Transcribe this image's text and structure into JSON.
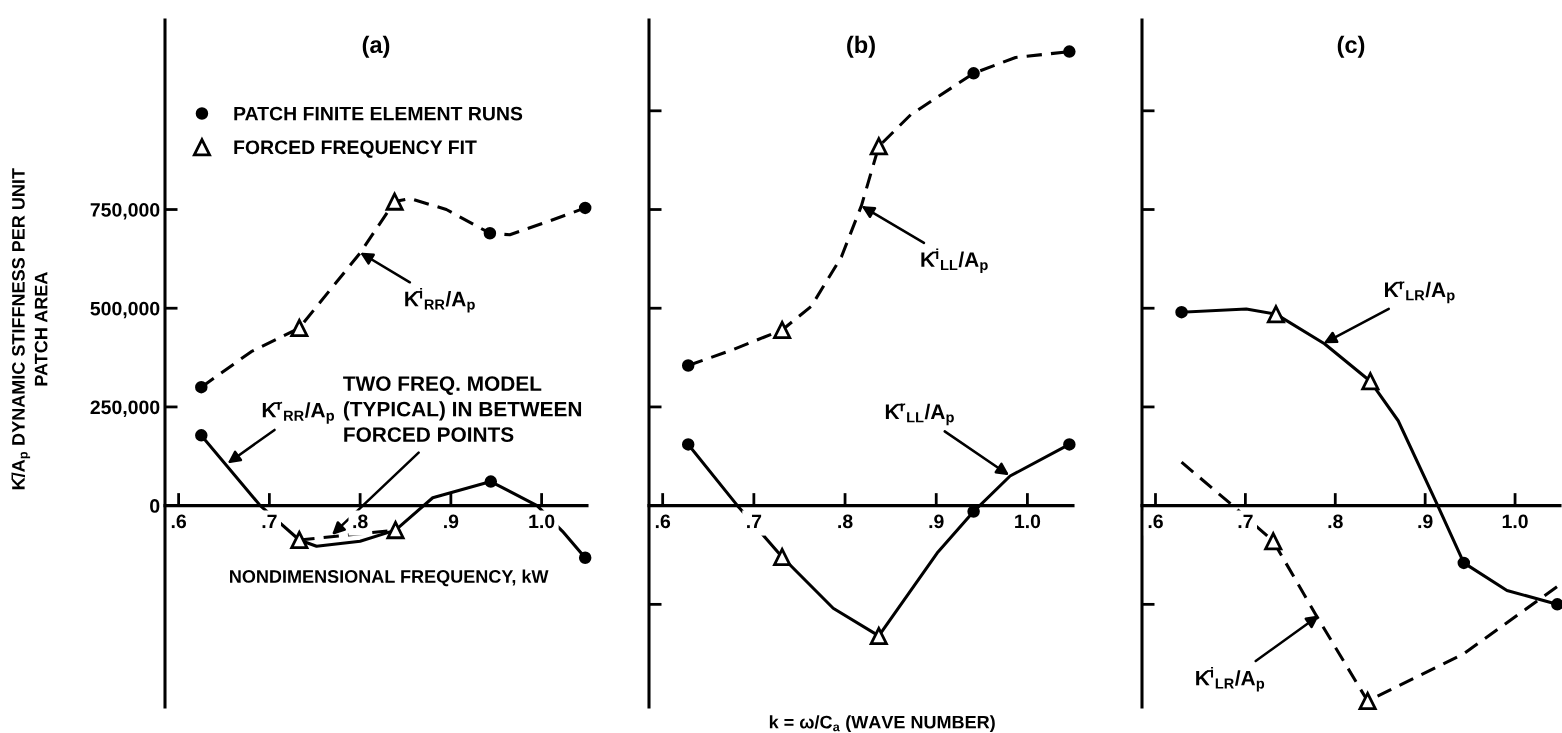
{
  "chart_data": [
    {
      "type": "line",
      "title": "(a)",
      "xlabel": "NONDIMENSIONAL FREQUENCY, kW",
      "ylabel": "K̄/A$_{p}$ DYNAMIC STIFFNESS PER UNIT\nPATCH AREA",
      "xlim": [
        0.585,
        1.05
      ],
      "ylim": [
        -510000,
        1230000
      ],
      "xticks": [
        {
          "value": 0.6,
          "label": ".6"
        },
        {
          "value": 0.7,
          "label": ".7"
        },
        {
          "value": 0.8,
          "label": ".8"
        },
        {
          "value": 0.9,
          "label": ".9"
        },
        {
          "value": 1.0,
          "label": "1.0"
        }
      ],
      "yticks": [
        0,
        {
          "value": 250000,
          "label": "250,000"
        },
        {
          "value": 500000,
          "label": "500,000"
        },
        {
          "value": 750000,
          "label": "750,000"
        }
      ],
      "grid": false,
      "legend": "top left",
      "series": [
        {
          "line_style": "dashed",
          "color": "#000000",
          "x": [
            0.625,
            0.68,
            0.733,
            0.8,
            0.838,
            0.855,
            0.895,
            0.943,
            0.965,
            1.005,
            1.048
          ],
          "values": [
            300000,
            390000,
            450000,
            640000,
            770000,
            778000,
            750000,
            690000,
            686000,
            718000,
            754000
          ]
        },
        {
          "line_style": "solid",
          "color": "#000000",
          "x": [
            0.625,
            0.69,
            0.733,
            0.752,
            0.8,
            0.839,
            0.88,
            0.944,
            0.995,
            1.023,
            1.048
          ],
          "values": [
            178000,
            0,
            -87000,
            -103000,
            -90000,
            -62000,
            20000,
            61000,
            0,
            -65000,
            -132000
          ]
        },
        {
          "line_style": "dashed",
          "color": "#000000",
          "x": [
            0.733,
            0.839
          ],
          "values": [
            -87000,
            -62000
          ]
        },
        {
          "type": "scatter",
          "name": "PATCH FINITE ELEMENT RUNS",
          "marker": "circle",
          "color": "#000000",
          "x": [
            0.625,
            0.943,
            1.048,
            0.625,
            0.944,
            1.048
          ],
          "values": [
            300000,
            690000,
            754000,
            178000,
            61000,
            -132000
          ]
        },
        {
          "type": "scatter",
          "name": "FORCED FREQUENCY FIT",
          "marker": "triangle",
          "color": "#000000",
          "x": [
            0.733,
            0.838,
            0.733,
            0.839
          ],
          "values": [
            450000,
            770000,
            -87000,
            -62000
          ]
        }
      ],
      "annotations": [
        {
          "text": "K̄$^{i}$$_{RR}$/A$_{p}$",
          "x": 0.8,
          "y": 641000
        },
        {
          "text": "K̄$^{r}$$_{RR}$/A$_{p}$",
          "x": 0.654,
          "y": 107000
        },
        {
          "text": "TWO FREQ. MODEL\n(TYPICAL) IN BETWEEN\nFORCED POINTS",
          "x": 0.769,
          "y": -74000
        }
      ]
    },
    {
      "type": "line",
      "title": "(b)",
      "xlabel": "k = ω/C$_{a}$ (WAVE NUMBER)",
      "xlim": [
        0.585,
        1.05
      ],
      "ylim": [
        -510000,
        1230000
      ],
      "xticks": [
        {
          "value": 0.6,
          "label": ".6"
        },
        {
          "value": 0.7,
          "label": ".7"
        },
        {
          "value": 0.8,
          "label": ".8"
        },
        {
          "value": 0.9,
          "label": ".9"
        },
        {
          "value": 1.0,
          "label": "1.0"
        }
      ],
      "yticks": [
        {
          "value": -250000,
          "label": null
        },
        {
          "value": 250000,
          "label": null
        },
        {
          "value": 500000,
          "label": null
        },
        {
          "value": 750000,
          "label": null
        },
        {
          "value": 1000000,
          "label": null
        }
      ],
      "tick_labels": "x",
      "grid": false,
      "series": [
        {
          "line_style": "dashed",
          "color": "#000000",
          "x": [
            0.628,
            0.677,
            0.731,
            0.763,
            0.796,
            0.818,
            0.837,
            0.872,
            0.941,
            0.987,
            1.046
          ],
          "values": [
            355000,
            395000,
            445000,
            505000,
            630000,
            760000,
            910000,
            990000,
            1095000,
            1135000,
            1150000
          ]
        },
        {
          "line_style": "solid",
          "color": "#000000",
          "x": [
            0.628,
            0.682,
            0.731,
            0.787,
            0.837,
            0.901,
            0.941,
            0.981,
            1.046
          ],
          "values": [
            155000,
            0,
            -130000,
            -260000,
            -330000,
            -120000,
            -15000,
            75000,
            155000
          ]
        },
        {
          "type": "scatter",
          "marker": "circle",
          "color": "#000000",
          "x": [
            0.628,
            0.941,
            1.046,
            0.628,
            0.941,
            1.046
          ],
          "values": [
            355000,
            1095000,
            1150000,
            155000,
            -15000,
            155000
          ]
        },
        {
          "type": "scatter",
          "marker": "triangle",
          "color": "#000000",
          "x": [
            0.731,
            0.837,
            0.731,
            0.837
          ],
          "values": [
            445000,
            910000,
            -130000,
            -330000
          ]
        }
      ],
      "annotations": [
        {
          "text": "K̄$^{i}$$_{LL}$/A$_{p}$",
          "x": 0.818,
          "y": 759000
        },
        {
          "text": "K̄$^{r}$$_{LL}$/A$_{p}$",
          "x": 0.98,
          "y": 77000
        }
      ]
    },
    {
      "type": "line",
      "title": "(c)",
      "xlim": [
        0.585,
        1.05
      ],
      "ylim": [
        -510000,
        1230000
      ],
      "xticks": [
        {
          "value": 0.6,
          "label": ".6"
        },
        {
          "value": 0.7,
          "label": ".7"
        },
        {
          "value": 0.8,
          "label": ".8"
        },
        {
          "value": 0.9,
          "label": ".9"
        },
        {
          "value": 1.0,
          "label": "1.0"
        }
      ],
      "yticks": [
        {
          "value": -250000,
          "label": null
        },
        {
          "value": 250000,
          "label": null
        },
        {
          "value": 500000,
          "label": null
        },
        {
          "value": 750000,
          "label": null
        },
        {
          "value": 1000000,
          "label": null
        }
      ],
      "tick_labels": "x",
      "grid": false,
      "series": [
        {
          "line_style": "solid",
          "color": "#000000",
          "x": [
            0.629,
            0.701,
            0.734,
            0.788,
            0.839,
            0.87,
            0.914,
            0.943,
            0.991,
            1.047
          ],
          "values": [
            490000,
            498000,
            485000,
            410000,
            315000,
            215000,
            0,
            -145000,
            -215000,
            -250000
          ]
        },
        {
          "line_style": "dashed",
          "color": "#000000",
          "x": [
            0.629,
            0.686,
            0.711,
            0.731,
            0.778,
            0.836,
            0.943,
            1.047
          ],
          "values": [
            110000,
            0,
            -50000,
            -90000,
            -275000,
            -495000,
            -375000,
            -205000
          ]
        },
        {
          "type": "scatter",
          "marker": "circle",
          "color": "#000000",
          "x": [
            0.629,
            0.943,
            1.047
          ],
          "values": [
            490000,
            -145000,
            -250000
          ]
        },
        {
          "type": "scatter",
          "marker": "triangle",
          "color": "#000000",
          "x": [
            0.734,
            0.839,
            0.731,
            0.836
          ],
          "values": [
            485000,
            315000,
            -90000,
            -495000
          ]
        }
      ],
      "annotations": [
        {
          "text": "K̄$^{r}$$_{LR}$/A$_{p}$",
          "x": 0.787,
          "y": 411000
        },
        {
          "text": "K̄$^{i}$$_{LR}$/A$_{p}$",
          "x": 0.782,
          "y": -278000
        }
      ]
    }
  ]
}
